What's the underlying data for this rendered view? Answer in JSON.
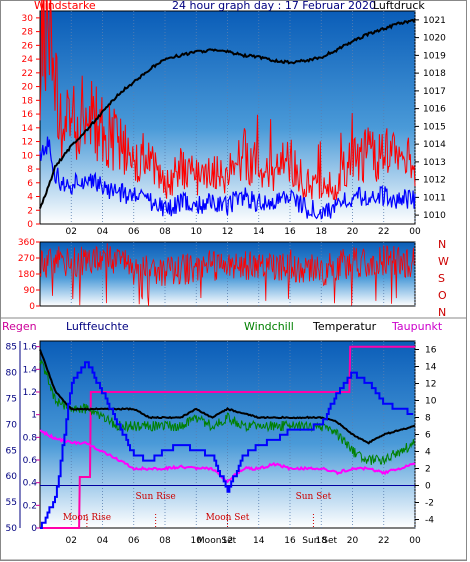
{
  "top": {
    "title": "24 hour graph day : 17 Februar 2020",
    "left_label": "Windstarke",
    "right_label": "Luftdruck",
    "left_ticks": [
      "0",
      "2",
      "4",
      "6",
      "8",
      "10",
      "12",
      "14",
      "16",
      "18",
      "20",
      "22",
      "24",
      "26",
      "28",
      "30"
    ],
    "right_ticks": [
      "1010",
      "1011",
      "1012",
      "1013",
      "1014",
      "1015",
      "1016",
      "1017",
      "1018",
      "1019",
      "1020",
      "1021"
    ],
    "x_ticks": [
      "02",
      "04",
      "06",
      "08",
      "10",
      "12",
      "14",
      "16",
      "18",
      "20",
      "22",
      "00"
    ]
  },
  "mid": {
    "left_ticks": [
      "0",
      "90",
      "180",
      "270",
      "360"
    ],
    "compass": [
      "N",
      "W",
      "S",
      "O",
      "N"
    ],
    "x_ticks": [
      "02",
      "04",
      "06",
      "08",
      "10",
      "12",
      "14",
      "16",
      "18",
      "20",
      "22",
      "00"
    ]
  },
  "bottom": {
    "labels": {
      "regen": "Regen",
      "luftfeuchte": "Luftfeuchte",
      "windchill": "Windchill",
      "temperatur": "Temperatur",
      "taupunkt": "Taupunkt"
    },
    "left_ticks": [
      "0",
      "0.2",
      "0.4",
      "0.6",
      "0.8",
      "1",
      "1.2",
      "1.4",
      "1.6"
    ],
    "hum_ticks": [
      "50",
      "55",
      "60",
      "65",
      "70",
      "75",
      "80",
      "85"
    ],
    "right_ticks": [
      "-4",
      "-2",
      "0",
      "2",
      "4",
      "6",
      "8",
      "10",
      "12",
      "14",
      "16"
    ],
    "x_ticks": [
      "02",
      "04",
      "06",
      "08",
      "10",
      "12",
      "14",
      "16",
      "18",
      "20",
      "22",
      "00"
    ],
    "events": {
      "moon_rise": "Moon Rise",
      "sun_rise": "Sun Rise",
      "moon_set": "Moon Set",
      "sun_set": "Sun Set",
      "moonset_axis": "MoonSet",
      "sunset_axis": "Sun Set"
    }
  },
  "colors": {
    "wind_speed": "#ff0000",
    "wind_avg": "#0000ff",
    "pressure": "#000000",
    "direction": "#ff0000",
    "humidity": "#0000ff",
    "windchill": "#008000",
    "temperature": "#000000",
    "dewpoint": "#ff00ff",
    "rain": "#ff00aa"
  },
  "chart_data": [
    {
      "type": "line",
      "title": "24 hour graph day : 17 Februar 2020",
      "series": [
        {
          "name": "Windstarke",
          "axis": "left",
          "x": [
            0,
            0.5,
            1,
            1.5,
            2,
            3,
            4,
            5,
            6,
            7,
            8,
            9,
            10,
            11,
            12,
            13,
            14,
            15,
            16,
            17,
            18,
            19,
            20,
            21,
            22,
            23,
            24
          ],
          "y": [
            22,
            26,
            16,
            12,
            13,
            14,
            12,
            10,
            9,
            8,
            5,
            7,
            6,
            7,
            6,
            9,
            7,
            7,
            8,
            5,
            5,
            5,
            9,
            9,
            9,
            8,
            8
          ]
        },
        {
          "name": "Luftdruck",
          "axis": "right",
          "x": [
            0,
            0.5,
            1,
            1.5,
            2,
            3,
            4,
            5,
            6,
            7,
            8,
            9,
            10,
            11,
            12,
            13,
            14,
            15,
            16,
            17,
            18,
            19,
            20,
            21,
            22,
            23,
            24
          ],
          "y": [
            1010.4,
            1011.5,
            1012.8,
            1013.3,
            1013.9,
            1014.8,
            1015.8,
            1016.8,
            1017.5,
            1018.2,
            1018.8,
            1019.0,
            1019.2,
            1019.3,
            1019.2,
            1019.0,
            1018.9,
            1018.7,
            1018.6,
            1018.7,
            1018.9,
            1019.3,
            1019.8,
            1020.2,
            1020.5,
            1020.8,
            1021.0
          ]
        }
      ],
      "ylim_left": [
        0,
        30
      ],
      "ylim_right": [
        1010,
        1021
      ]
    },
    {
      "type": "line",
      "series": [
        {
          "x": [
            0,
            1,
            2,
            3,
            4,
            5,
            6,
            7,
            8,
            9,
            10,
            11,
            12,
            13,
            14,
            15,
            16,
            17,
            18,
            19,
            20,
            21,
            22,
            23,
            24
          ],
          "y": [
            230,
            250,
            260,
            240,
            270,
            250,
            200,
            220,
            190,
            210,
            200,
            230,
            210,
            220,
            240,
            200,
            230,
            210,
            200,
            220,
            250,
            240,
            260,
            250,
            240
          ]
        }
      ],
      "ylim": [
        0,
        360
      ]
    },
    {
      "type": "line",
      "series": [
        {
          "name": "Luftfeuchte",
          "axis": "humidity",
          "x": [
            0,
            1,
            2,
            3,
            4,
            5,
            6,
            7,
            8,
            9,
            10,
            11,
            12,
            13,
            14,
            15,
            16,
            17,
            18,
            19,
            20,
            21,
            22,
            23,
            24
          ],
          "y": [
            50,
            56,
            78,
            82,
            76,
            70,
            64,
            63,
            65,
            66,
            65,
            64,
            57,
            64,
            66,
            67,
            69,
            69,
            70,
            76,
            80,
            78,
            74,
            73,
            72
          ]
        },
        {
          "name": "Windchill",
          "axis": "right",
          "x": [
            0,
            1,
            2,
            3,
            4,
            5,
            6,
            7,
            8,
            9,
            10,
            11,
            12,
            13,
            14,
            15,
            16,
            17,
            18,
            19,
            20,
            21,
            22,
            23,
            24
          ],
          "y": [
            15,
            10,
            9,
            9,
            8,
            7,
            7,
            7,
            7,
            7,
            8,
            7,
            8,
            7,
            7,
            7,
            7,
            7,
            7,
            6,
            4,
            3,
            3,
            4,
            5
          ]
        },
        {
          "name": "Temperatur",
          "axis": "right",
          "x": [
            0,
            1,
            2,
            3,
            4,
            5,
            6,
            7,
            8,
            9,
            10,
            11,
            12,
            13,
            14,
            15,
            16,
            17,
            18,
            19,
            20,
            21,
            22,
            23,
            24
          ],
          "y": [
            16,
            11,
            9,
            9,
            9,
            9,
            9,
            8,
            8,
            8,
            9,
            8,
            9,
            8.5,
            8,
            8,
            8,
            8,
            8,
            7.5,
            6,
            5,
            6,
            6.5,
            7
          ]
        },
        {
          "name": "Taupunkt",
          "axis": "right",
          "x": [
            0,
            1,
            2,
            3,
            4,
            5,
            6,
            7,
            8,
            9,
            10,
            11,
            12,
            13,
            14,
            15,
            16,
            17,
            18,
            19,
            20,
            21,
            22,
            23,
            24
          ],
          "y": [
            6.5,
            5.5,
            5,
            5,
            4,
            3,
            2,
            2,
            2,
            2.2,
            2,
            2,
            0.5,
            2,
            2,
            2.5,
            2,
            2,
            2,
            1.5,
            2,
            2,
            1.5,
            2,
            2.5
          ]
        },
        {
          "name": "Regen",
          "axis": "left",
          "x": [
            0,
            2.5,
            2.55,
            3.2,
            3.25,
            19.8,
            19.85,
            24
          ],
          "y": [
            0,
            0,
            0.45,
            0.45,
            1.2,
            1.2,
            1.6,
            1.6
          ]
        }
      ],
      "ylim_left": [
        0,
        1.6
      ],
      "ylim_humidity": [
        50,
        85
      ],
      "ylim_right": [
        -4,
        16
      ],
      "events": [
        {
          "label": "Moon Rise",
          "x": 3.0
        },
        {
          "label": "Sun Rise",
          "x": 7.4
        },
        {
          "label": "Moon Set",
          "x": 12.0
        },
        {
          "label": "Sun Set",
          "x": 17.5
        }
      ]
    }
  ]
}
